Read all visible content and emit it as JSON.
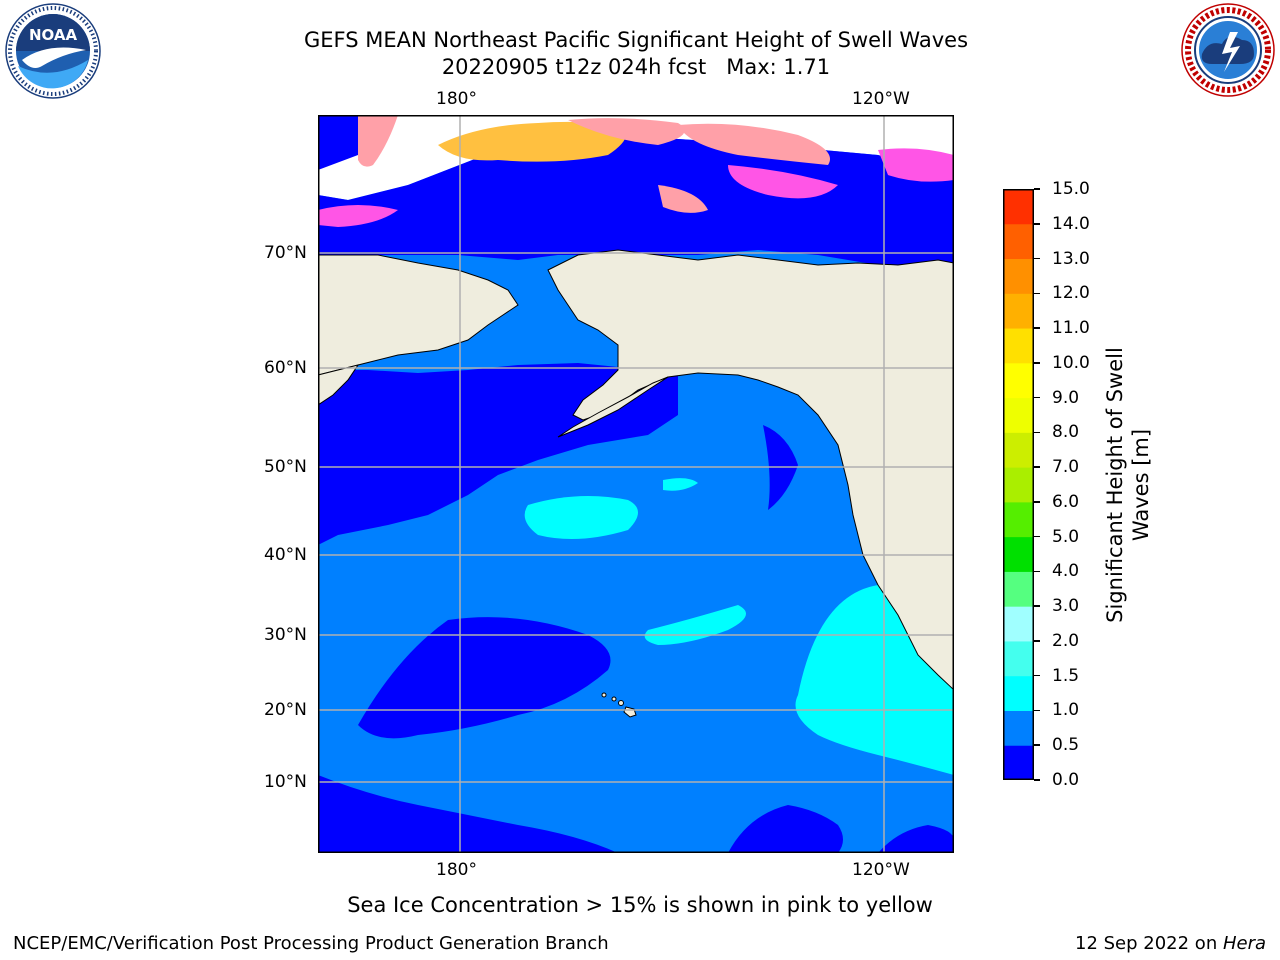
{
  "header": {
    "title_line1": "GEFS MEAN Northeast Pacific Significant Height of Swell Waves",
    "title_line2": "20220905 t12z 024h fcst   Max: 1.71"
  },
  "logos": {
    "left": {
      "name": "noaa-logo",
      "text": "NOAA",
      "ring_text": "NATIONAL OCEANIC AND ATMOSPHERIC ADMINISTRATION · U.S. DEPARTMENT OF COMMERCE"
    },
    "right": {
      "name": "nws-logo",
      "ring_text": "NATIONAL WEATHER SERVICE"
    }
  },
  "map": {
    "lon_labels_top": [
      "180°",
      "120°W"
    ],
    "lon_labels_bottom": [
      "180°",
      "120°W"
    ],
    "lat_labels": [
      "70°N",
      "60°N",
      "50°N",
      "40°N",
      "30°N",
      "20°N",
      "10°N"
    ],
    "colors": {
      "land": "#efedde",
      "ocean_0_05": "#0000ff",
      "ocean_05_10": "#0080ff",
      "ocean_10_15": "#00ffff",
      "ice_low": "#ff55e6",
      "ice_mid": "#ffa0a8",
      "ice_high": "#ffc040",
      "no_data": "#ffffff",
      "grid": "#b0b0b0"
    }
  },
  "colorbar": {
    "label": "Significant Height of Swell Waves [m]",
    "ticks": [
      "15.0",
      "14.0",
      "13.0",
      "12.0",
      "11.0",
      "10.0",
      "9.0",
      "8.0",
      "7.0",
      "6.0",
      "5.0",
      "4.0",
      "3.0",
      "2.0",
      "1.5",
      "1.0",
      "0.5",
      "0.0"
    ],
    "colors_bottom_to_top": [
      "#0000ff",
      "#0080ff",
      "#00ffff",
      "#44ffee",
      "#a0ffff",
      "#55ff80",
      "#00e000",
      "#55ee00",
      "#aaee00",
      "#ccee00",
      "#eeff00",
      "#ffff00",
      "#ffe000",
      "#ffb000",
      "#ff9000",
      "#ff6000",
      "#ff3000"
    ]
  },
  "caption": "Sea Ice Concentration > 15% is shown in pink to yellow",
  "footer": {
    "left": "NCEP/EMC/Verification Post Processing Product Generation Branch",
    "right_prefix": "12 Sep 2022 on ",
    "right_host": "Hera"
  }
}
